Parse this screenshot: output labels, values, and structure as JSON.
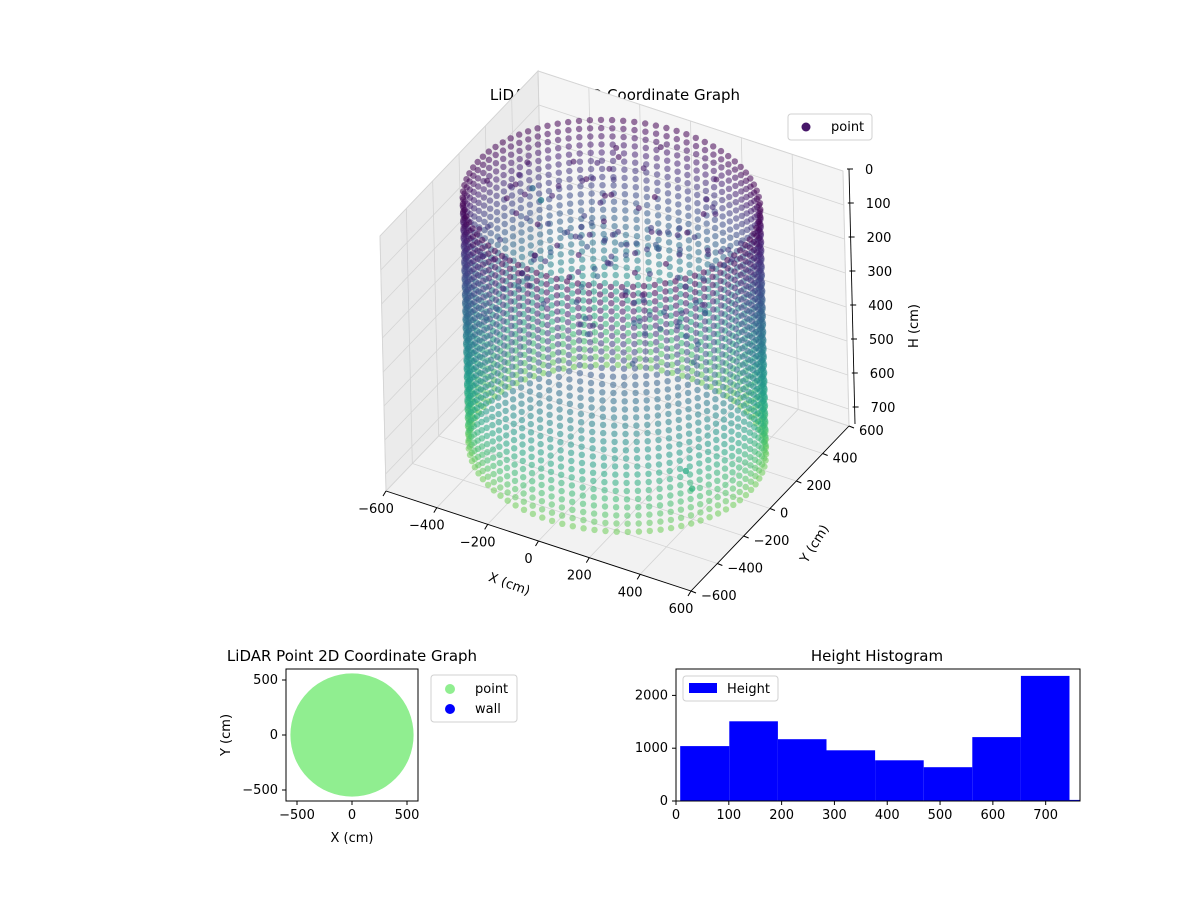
{
  "colors": {
    "background": "#ffffff",
    "pane": "#f2f2f2",
    "grid": "#d4d4d4",
    "point_2d": "#90ee90",
    "wall": "#0000ff",
    "histogram": "#0000ff",
    "viridis_low_height_end": "#440154",
    "viridis_high_height_end": "#7ad151"
  },
  "chart_data": [
    {
      "type": "scatter",
      "projection": "3d",
      "title": "LiDAR Point 3D Coordinate Graph",
      "xlabel": "X (cm)",
      "ylabel": "Y (cm)",
      "zlabel": "H (cm)",
      "xlim": [
        -600,
        600
      ],
      "ylim": [
        -600,
        600
      ],
      "zlim": [
        0,
        750
      ],
      "z_inverted": true,
      "x_ticks": [
        "−600",
        "−400",
        "−200",
        "0",
        "200",
        "400",
        "600"
      ],
      "y_ticks": [
        "−600",
        "−400",
        "−200",
        "0",
        "200",
        "400",
        "600"
      ],
      "z_ticks": [
        "0",
        "100",
        "200",
        "300",
        "400",
        "500",
        "600",
        "700"
      ],
      "colormap": "viridis",
      "color_by": "height",
      "grid": true,
      "legend": {
        "position": "top-right",
        "entries": [
          "point"
        ]
      },
      "series": [
        {
          "name": "point",
          "shape": "cylindrical wall of vertical scan columns plus scattered interior points",
          "wall_radius_cm": 520,
          "wall_height_range_cm": [
            0,
            740
          ],
          "outlier_points": [
            {
              "x": -590,
              "y": 520,
              "h": 310
            },
            {
              "x": -600,
              "y": 600,
              "h": 380
            },
            {
              "x": 430,
              "y": -300,
              "h": 560
            },
            {
              "x": 470,
              "y": -330,
              "h": 590
            }
          ]
        }
      ]
    },
    {
      "type": "scatter",
      "title": "LiDAR Point 2D Coordinate Graph",
      "xlabel": "X (cm)",
      "ylabel": "Y (cm)",
      "xlim": [
        -600,
        600
      ],
      "ylim": [
        -600,
        600
      ],
      "x_ticks": [
        "−500",
        "0",
        "500"
      ],
      "y_ticks": [
        "−500",
        "0",
        "500"
      ],
      "legend": {
        "position": "right, outside",
        "entries": [
          "point",
          "wall"
        ]
      },
      "series": [
        {
          "name": "point",
          "color": "#90ee90",
          "shape": "filled disk",
          "center": [
            0,
            0
          ],
          "radius_cm": 560
        },
        {
          "name": "wall",
          "color": "#0000ff",
          "shape": "none visible"
        }
      ]
    },
    {
      "type": "bar",
      "subtype": "histogram",
      "title": "Height Histogram",
      "xlabel": "",
      "ylabel": "",
      "xlim": [
        0,
        765
      ],
      "ylim": [
        0,
        2500
      ],
      "x_ticks": [
        "0",
        "100",
        "200",
        "300",
        "400",
        "500",
        "600",
        "700"
      ],
      "y_ticks": [
        "0",
        "1000",
        "2000"
      ],
      "legend": {
        "position": "top-left",
        "entries": [
          "Height"
        ]
      },
      "series": [
        {
          "name": "Height",
          "color": "#0000ff",
          "bins": [
            {
              "x0": 8,
              "x1": 101,
              "count": 1040
            },
            {
              "x0": 101,
              "x1": 193,
              "count": 1510
            },
            {
              "x0": 193,
              "x1": 285,
              "count": 1170
            },
            {
              "x0": 285,
              "x1": 377,
              "count": 960
            },
            {
              "x0": 377,
              "x1": 469,
              "count": 770
            },
            {
              "x0": 469,
              "x1": 561,
              "count": 640
            },
            {
              "x0": 561,
              "x1": 653,
              "count": 1210
            },
            {
              "x0": 653,
              "x1": 745,
              "count": 2370
            },
            {
              "x0": 745,
              "x1": 765,
              "count": 20
            }
          ]
        }
      ]
    }
  ]
}
